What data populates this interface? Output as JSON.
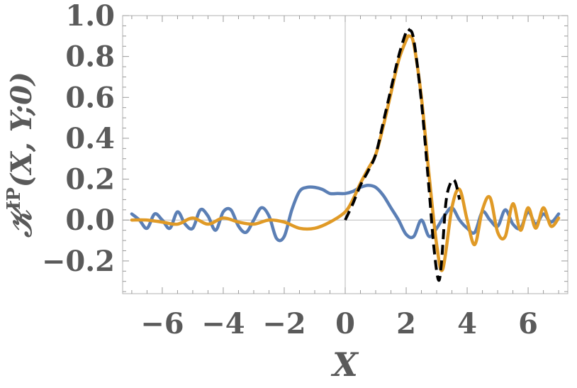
{
  "chart_data": {
    "type": "line",
    "title": "",
    "xlabel": "X",
    "ylabel": "𝒦IP(X, Y;0)",
    "ylabel_parts": {
      "symbol": "𝒦",
      "superscript": "IP",
      "args": "(X, Y;0)"
    },
    "xlim": [
      -7.3,
      7.3
    ],
    "ylim": [
      -0.36,
      1.0
    ],
    "x_ticks": [
      -6,
      -4,
      -2,
      0,
      2,
      4,
      6
    ],
    "x_tick_labels": [
      "−6",
      "−4",
      "−2",
      "0",
      "2",
      "4",
      "6"
    ],
    "y_ticks": [
      -0.2,
      0.0,
      0.2,
      0.4,
      0.6,
      0.8,
      1.0
    ],
    "y_tick_labels": [
      "−0.2",
      "0.0",
      "0.2",
      "0.4",
      "0.6",
      "0.8",
      "1.0"
    ],
    "grid": false,
    "legend": "none",
    "series": [
      {
        "color": "#5b7fb5",
        "style": "solid",
        "x": [
          -7.0,
          -6.75,
          -6.5,
          -6.25,
          -6.0,
          -5.75,
          -5.5,
          -5.25,
          -5.0,
          -4.75,
          -4.5,
          -4.25,
          -4.0,
          -3.75,
          -3.5,
          -3.25,
          -3.0,
          -2.75,
          -2.5,
          -2.25,
          -2.0,
          -1.75,
          -1.5,
          -1.25,
          -1.0,
          -0.75,
          -0.5,
          -0.25,
          0.0,
          0.25,
          0.5,
          0.75,
          1.0,
          1.25,
          1.5,
          1.75,
          2.0,
          2.25,
          2.5,
          2.75,
          3.0,
          3.25,
          3.5,
          3.75,
          4.0,
          4.25,
          4.5,
          4.75,
          5.0,
          5.25,
          5.5,
          5.75,
          6.0,
          6.25,
          6.5,
          6.75,
          7.0
        ],
        "y": [
          0.03,
          0.0,
          -0.04,
          0.03,
          0.0,
          -0.04,
          0.04,
          -0.02,
          -0.04,
          0.05,
          0.02,
          -0.05,
          0.04,
          0.05,
          -0.03,
          -0.06,
          0.0,
          0.06,
          0.02,
          -0.09,
          -0.08,
          0.05,
          0.14,
          0.16,
          0.16,
          0.15,
          0.13,
          0.13,
          0.13,
          0.14,
          0.16,
          0.17,
          0.16,
          0.12,
          0.06,
          0.0,
          -0.07,
          -0.08,
          0.0,
          -0.08,
          -0.04,
          0.02,
          0.06,
          0.0,
          -0.04,
          -0.06,
          0.04,
          0.0,
          -0.03,
          0.05,
          -0.02,
          -0.04,
          0.04,
          -0.02,
          0.03,
          -0.01,
          0.03
        ]
      },
      {
        "color": "#e09a26",
        "style": "solid",
        "x": [
          -7.0,
          -6.5,
          -6.0,
          -5.5,
          -5.0,
          -4.5,
          -4.0,
          -3.5,
          -3.0,
          -2.5,
          -2.0,
          -1.5,
          -1.0,
          -0.5,
          0.0,
          0.25,
          0.5,
          0.75,
          1.0,
          1.25,
          1.5,
          1.75,
          2.0,
          2.1,
          2.25,
          2.5,
          2.75,
          3.0,
          3.2,
          3.5,
          3.75,
          4.0,
          4.25,
          4.5,
          4.75,
          5.0,
          5.25,
          5.5,
          5.75,
          6.0,
          6.25,
          6.5,
          6.75,
          7.0
        ],
        "y": [
          0.0,
          0.0,
          -0.01,
          -0.02,
          0.01,
          -0.02,
          0.01,
          -0.01,
          -0.02,
          0.0,
          -0.01,
          -0.04,
          -0.04,
          -0.01,
          0.04,
          0.1,
          0.18,
          0.25,
          0.32,
          0.46,
          0.62,
          0.78,
          0.88,
          0.9,
          0.86,
          0.6,
          0.22,
          -0.12,
          -0.24,
          0.06,
          0.15,
          0.0,
          -0.12,
          0.05,
          0.11,
          -0.06,
          -0.08,
          0.08,
          -0.05,
          0.06,
          -0.04,
          0.06,
          -0.03,
          0.01
        ]
      },
      {
        "color": "#000000",
        "style": "dashed",
        "x": [
          0.0,
          0.25,
          0.5,
          0.75,
          1.0,
          1.25,
          1.5,
          1.75,
          2.0,
          2.1,
          2.25,
          2.5,
          2.75,
          2.9,
          3.05,
          3.15,
          3.3,
          3.45,
          3.6,
          3.75
        ],
        "y": [
          0.0,
          0.08,
          0.17,
          0.24,
          0.32,
          0.48,
          0.64,
          0.8,
          0.92,
          0.93,
          0.88,
          0.58,
          0.15,
          -0.12,
          -0.29,
          -0.22,
          0.08,
          0.18,
          0.19,
          0.1
        ]
      }
    ]
  }
}
